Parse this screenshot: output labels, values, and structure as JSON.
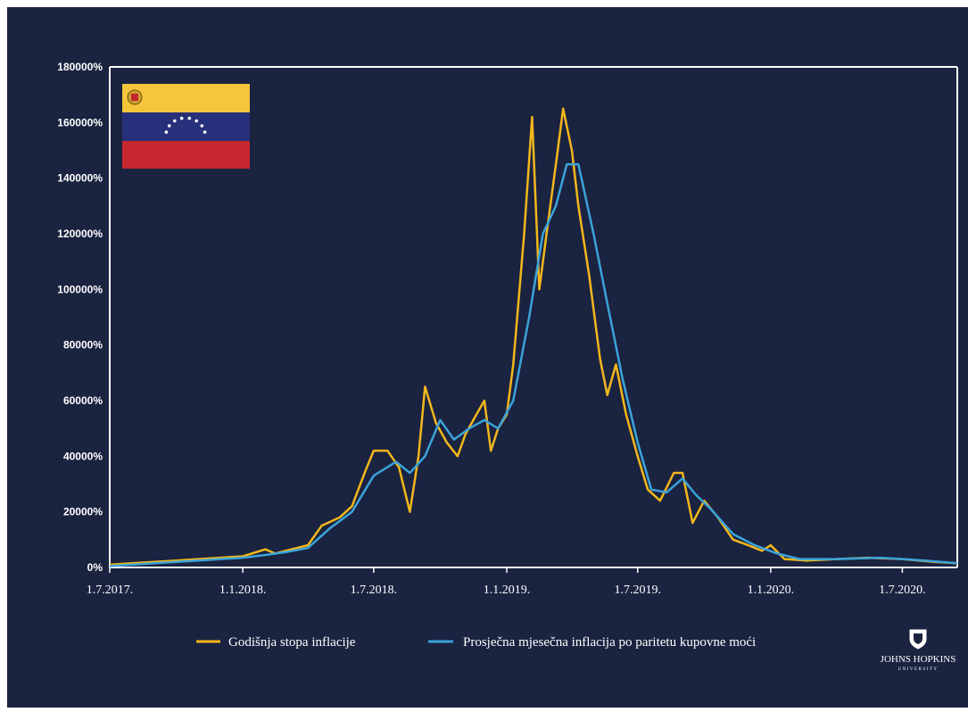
{
  "chart_data": {
    "type": "line",
    "title": "",
    "xlabel": "",
    "ylabel": "",
    "x_tick_labels": [
      "1.7.2017.",
      "1.1.2018.",
      "1.7.2018.",
      "1.1.2019.",
      "1.7.2019.",
      "1.1.2020.",
      "1.7.2020."
    ],
    "y_tick_labels": [
      "0%",
      "20000%",
      "40000%",
      "60000%",
      "80000%",
      "100000%",
      "120000%",
      "140000%",
      "160000%",
      "180000%"
    ],
    "ylim": [
      0,
      180000
    ],
    "xlim": [
      "2017-07-01",
      "2020-09-15"
    ],
    "grid": false,
    "legend_position": "bottom",
    "series": [
      {
        "name": "Godišnja stopa inflacije",
        "color": "#f2b71c",
        "points": [
          [
            "2017-07-01",
            1000
          ],
          [
            "2017-08-01",
            1500
          ],
          [
            "2017-09-01",
            2000
          ],
          [
            "2017-10-01",
            2500
          ],
          [
            "2017-11-01",
            3000
          ],
          [
            "2017-12-01",
            3500
          ],
          [
            "2018-01-01",
            4000
          ],
          [
            "2018-02-01",
            6500
          ],
          [
            "2018-02-15",
            5000
          ],
          [
            "2018-03-01",
            6000
          ],
          [
            "2018-04-01",
            8000
          ],
          [
            "2018-04-20",
            15000
          ],
          [
            "2018-05-15",
            18000
          ],
          [
            "2018-06-01",
            22000
          ],
          [
            "2018-06-20",
            35000
          ],
          [
            "2018-07-01",
            42000
          ],
          [
            "2018-07-20",
            42000
          ],
          [
            "2018-08-05",
            36000
          ],
          [
            "2018-08-20",
            20000
          ],
          [
            "2018-09-01",
            40000
          ],
          [
            "2018-09-10",
            65000
          ],
          [
            "2018-09-25",
            52000
          ],
          [
            "2018-10-10",
            45000
          ],
          [
            "2018-10-25",
            40000
          ],
          [
            "2018-11-05",
            48000
          ],
          [
            "2018-11-20",
            55000
          ],
          [
            "2018-12-01",
            60000
          ],
          [
            "2018-12-10",
            42000
          ],
          [
            "2018-12-20",
            50000
          ],
          [
            "2019-01-01",
            55000
          ],
          [
            "2019-01-10",
            73000
          ],
          [
            "2019-01-25",
            120000
          ],
          [
            "2019-02-05",
            162000
          ],
          [
            "2019-02-15",
            100000
          ],
          [
            "2019-02-25",
            120000
          ],
          [
            "2019-03-10",
            145000
          ],
          [
            "2019-03-20",
            165000
          ],
          [
            "2019-04-01",
            150000
          ],
          [
            "2019-04-10",
            130000
          ],
          [
            "2019-04-25",
            105000
          ],
          [
            "2019-05-10",
            75000
          ],
          [
            "2019-05-20",
            62000
          ],
          [
            "2019-06-01",
            73000
          ],
          [
            "2019-06-15",
            55000
          ],
          [
            "2019-07-01",
            40000
          ],
          [
            "2019-07-15",
            28000
          ],
          [
            "2019-08-01",
            24000
          ],
          [
            "2019-08-20",
            34000
          ],
          [
            "2019-09-01",
            34000
          ],
          [
            "2019-09-15",
            16000
          ],
          [
            "2019-10-01",
            24000
          ],
          [
            "2019-10-20",
            18000
          ],
          [
            "2019-11-10",
            10000
          ],
          [
            "2019-12-01",
            8000
          ],
          [
            "2019-12-20",
            6000
          ],
          [
            "2020-01-01",
            8000
          ],
          [
            "2020-01-20",
            3000
          ],
          [
            "2020-02-20",
            2500
          ],
          [
            "2020-04-01",
            3000
          ],
          [
            "2020-05-15",
            3500
          ],
          [
            "2020-07-01",
            3000
          ],
          [
            "2020-08-15",
            2000
          ],
          [
            "2020-09-15",
            1500
          ]
        ]
      },
      {
        "name": "Prosječna mjesečna inflacija po paritetu kupovne moći",
        "color": "#3ba3d9",
        "points": [
          [
            "2017-07-01",
            500
          ],
          [
            "2017-09-01",
            1500
          ],
          [
            "2017-11-01",
            2500
          ],
          [
            "2018-01-01",
            3500
          ],
          [
            "2018-02-01",
            4500
          ],
          [
            "2018-03-01",
            5500
          ],
          [
            "2018-04-01",
            7000
          ],
          [
            "2018-05-01",
            14000
          ],
          [
            "2018-06-01",
            20000
          ],
          [
            "2018-07-01",
            33000
          ],
          [
            "2018-08-01",
            38000
          ],
          [
            "2018-08-20",
            34000
          ],
          [
            "2018-09-10",
            40000
          ],
          [
            "2018-10-01",
            53000
          ],
          [
            "2018-10-20",
            46000
          ],
          [
            "2018-11-10",
            50000
          ],
          [
            "2018-12-01",
            53000
          ],
          [
            "2018-12-20",
            50000
          ],
          [
            "2019-01-10",
            60000
          ],
          [
            "2019-02-01",
            90000
          ],
          [
            "2019-02-20",
            120000
          ],
          [
            "2019-03-10",
            130000
          ],
          [
            "2019-03-25",
            145000
          ],
          [
            "2019-04-10",
            145000
          ],
          [
            "2019-05-01",
            120000
          ],
          [
            "2019-05-20",
            95000
          ],
          [
            "2019-06-10",
            68000
          ],
          [
            "2019-07-01",
            45000
          ],
          [
            "2019-07-20",
            28000
          ],
          [
            "2019-08-10",
            27000
          ],
          [
            "2019-09-01",
            32000
          ],
          [
            "2019-09-20",
            26000
          ],
          [
            "2019-10-10",
            21000
          ],
          [
            "2019-11-10",
            12000
          ],
          [
            "2019-12-10",
            8000
          ],
          [
            "2020-01-10",
            5000
          ],
          [
            "2020-02-10",
            3000
          ],
          [
            "2020-04-01",
            3000
          ],
          [
            "2020-06-01",
            3500
          ],
          [
            "2020-08-01",
            2500
          ],
          [
            "2020-09-15",
            1500
          ]
        ]
      }
    ]
  },
  "legend": {
    "series1_label": "Godišnja stopa inflacije",
    "series2_label": "Prosječna mjesečna inflacija po paritetu kupovne moći"
  },
  "logo": {
    "name": "JOHNS HOPKINS",
    "sub": "UNIVERSITY"
  },
  "colors": {
    "background": "#1a2340",
    "axis": "#ffffff",
    "flag_yellow": "#f5c63b",
    "flag_blue": "#27307a",
    "flag_red": "#c6262e"
  }
}
